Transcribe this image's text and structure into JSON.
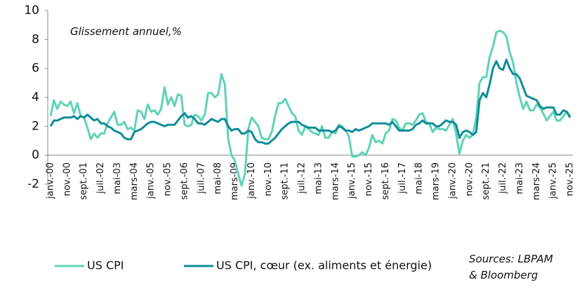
{
  "chart_data": {
    "type": "line",
    "subtitle": "Glissement annuel,%",
    "annotations": [
      "Sources: LBPAM",
      "& Bloomberg"
    ],
    "ylim": [
      -2,
      10
    ],
    "yticks": [
      -2,
      0,
      2,
      4,
      6,
      8,
      10
    ],
    "categories": [
      "janv.-00",
      null,
      null,
      null,
      null,
      "nov.-00",
      null,
      null,
      null,
      null,
      "sept.-01",
      null,
      null,
      null,
      null,
      "juil.-02",
      null,
      null,
      null,
      null,
      "mai-03",
      null,
      null,
      null,
      null,
      "mars-04",
      null,
      null,
      null,
      null,
      "janv.-05",
      null,
      null,
      null,
      null,
      "nov.-05",
      null,
      null,
      null,
      null,
      "sept.-06",
      null,
      null,
      null,
      null,
      "juil.-07",
      null,
      null,
      null,
      null,
      "mai-08",
      null,
      null,
      null,
      null,
      "mars-09",
      null,
      null,
      null,
      null,
      "janv.-10",
      null,
      null,
      null,
      null,
      "nov.-10",
      null,
      null,
      null,
      null,
      "sept.-11",
      null,
      null,
      null,
      null,
      "juil.-12",
      null,
      null,
      null,
      null,
      "mai-13",
      null,
      null,
      null,
      null,
      "mars-14",
      null,
      null,
      null,
      null,
      "janv.-15",
      null,
      null,
      null,
      null,
      "nov.-15",
      null,
      null,
      null,
      null,
      "sept.-16",
      null,
      null,
      null,
      null,
      "juil.-17",
      null,
      null,
      null,
      null,
      "mai-18",
      null,
      null,
      null,
      null,
      "mars-19",
      null,
      null,
      null,
      null,
      "janv.-20",
      null,
      null,
      null,
      null,
      "nov.-20",
      null,
      null,
      null,
      null,
      "sept.-21",
      null,
      null,
      null,
      null,
      "juil.-22",
      null,
      null,
      null,
      null,
      "mai-23",
      null,
      null,
      null,
      null,
      "mars-24",
      null,
      null,
      null,
      null,
      "janv.-25",
      null,
      null,
      null,
      null,
      "nov.-25"
    ],
    "series": [
      {
        "name": "US CPI",
        "color": "#5fd3b5",
        "values": [
          2.7,
          3.8,
          3.2,
          3.7,
          3.5,
          3.4,
          3.7,
          2.9,
          3.6,
          2.7,
          2.6,
          1.9,
          1.1,
          1.5,
          1.2,
          1.5,
          1.5,
          2.2,
          2.6,
          3.0,
          2.1,
          2.1,
          2.3,
          1.8,
          1.9,
          1.7,
          3.1,
          3.0,
          2.5,
          3.5,
          3.0,
          3.1,
          2.8,
          3.2,
          4.7,
          3.5,
          4.0,
          3.4,
          4.2,
          4.1,
          2.1,
          2.0,
          2.1,
          2.8,
          2.7,
          2.4,
          2.8,
          4.3,
          4.3,
          4.0,
          4.2,
          5.6,
          4.9,
          1.1,
          0.0,
          -0.4,
          -1.3,
          -2.1,
          -1.3,
          1.8,
          2.6,
          2.3,
          2.0,
          1.2,
          1.1,
          1.1,
          1.6,
          2.7,
          3.6,
          3.6,
          3.9,
          3.4,
          2.9,
          2.7,
          1.7,
          1.4,
          2.0,
          1.8,
          1.6,
          1.5,
          1.4,
          2.0,
          1.2,
          1.2,
          1.6,
          1.5,
          2.1,
          2.0,
          1.7,
          1.3,
          -0.1,
          -0.1,
          0.0,
          0.2,
          0.0,
          0.5,
          1.4,
          0.9,
          1.0,
          0.8,
          1.5,
          1.7,
          2.5,
          2.4,
          1.9,
          1.7,
          2.2,
          2.2,
          2.1,
          2.4,
          2.8,
          2.9,
          2.3,
          2.2,
          1.6,
          1.9,
          1.8,
          1.8,
          1.7,
          2.1,
          2.5,
          1.5,
          0.1,
          1.0,
          1.4,
          1.2,
          1.4,
          2.6,
          5.0,
          5.4,
          5.4,
          6.8,
          7.5,
          8.5,
          8.6,
          8.5,
          8.2,
          7.1,
          6.4,
          5.0,
          4.0,
          3.2,
          3.7,
          3.1,
          3.1,
          3.5,
          3.3,
          2.9,
          2.4,
          2.7,
          3.0,
          2.4,
          2.4,
          2.7,
          3.0,
          2.7
        ]
      },
      {
        "name": "US CPI, cœur (ex. aliments et énergie)",
        "color": "#0e8c99",
        "values": [
          2.0,
          2.4,
          2.4,
          2.5,
          2.6,
          2.6,
          2.6,
          2.7,
          2.5,
          2.7,
          2.6,
          2.8,
          2.6,
          2.4,
          2.5,
          2.2,
          2.2,
          2.0,
          1.9,
          1.7,
          1.6,
          1.5,
          1.2,
          1.1,
          1.1,
          1.6,
          1.7,
          1.8,
          2.0,
          2.2,
          2.3,
          2.3,
          2.2,
          2.1,
          2.0,
          2.1,
          2.1,
          2.1,
          2.4,
          2.7,
          2.9,
          2.6,
          2.7,
          2.5,
          2.2,
          2.2,
          2.1,
          2.3,
          2.5,
          2.4,
          2.3,
          2.5,
          2.5,
          2.0,
          1.7,
          1.8,
          1.8,
          1.5,
          1.5,
          1.7,
          1.6,
          1.1,
          0.9,
          0.9,
          0.8,
          0.8,
          1.0,
          1.2,
          1.5,
          1.8,
          2.0,
          2.2,
          2.3,
          2.3,
          2.3,
          2.1,
          2.0,
          1.9,
          1.9,
          1.9,
          1.7,
          1.7,
          1.7,
          1.7,
          1.6,
          1.7,
          2.0,
          1.9,
          1.7,
          1.7,
          1.6,
          1.8,
          1.7,
          1.8,
          1.9,
          2.0,
          2.2,
          2.2,
          2.2,
          2.2,
          2.2,
          2.1,
          2.3,
          2.0,
          1.7,
          1.7,
          1.7,
          1.7,
          1.8,
          2.1,
          2.2,
          2.4,
          2.2,
          2.2,
          2.2,
          2.0,
          2.0,
          2.2,
          2.4,
          2.3,
          2.3,
          2.1,
          1.2,
          1.6,
          1.7,
          1.6,
          1.4,
          1.6,
          3.8,
          4.3,
          4.0,
          4.9,
          6.0,
          6.5,
          6.0,
          5.9,
          6.6,
          6.0,
          5.6,
          5.6,
          5.3,
          4.7,
          4.1,
          4.0,
          3.9,
          3.8,
          3.4,
          3.2,
          3.3,
          3.3,
          3.3,
          2.8,
          2.8,
          3.1,
          3.0,
          2.6
        ]
      }
    ]
  }
}
